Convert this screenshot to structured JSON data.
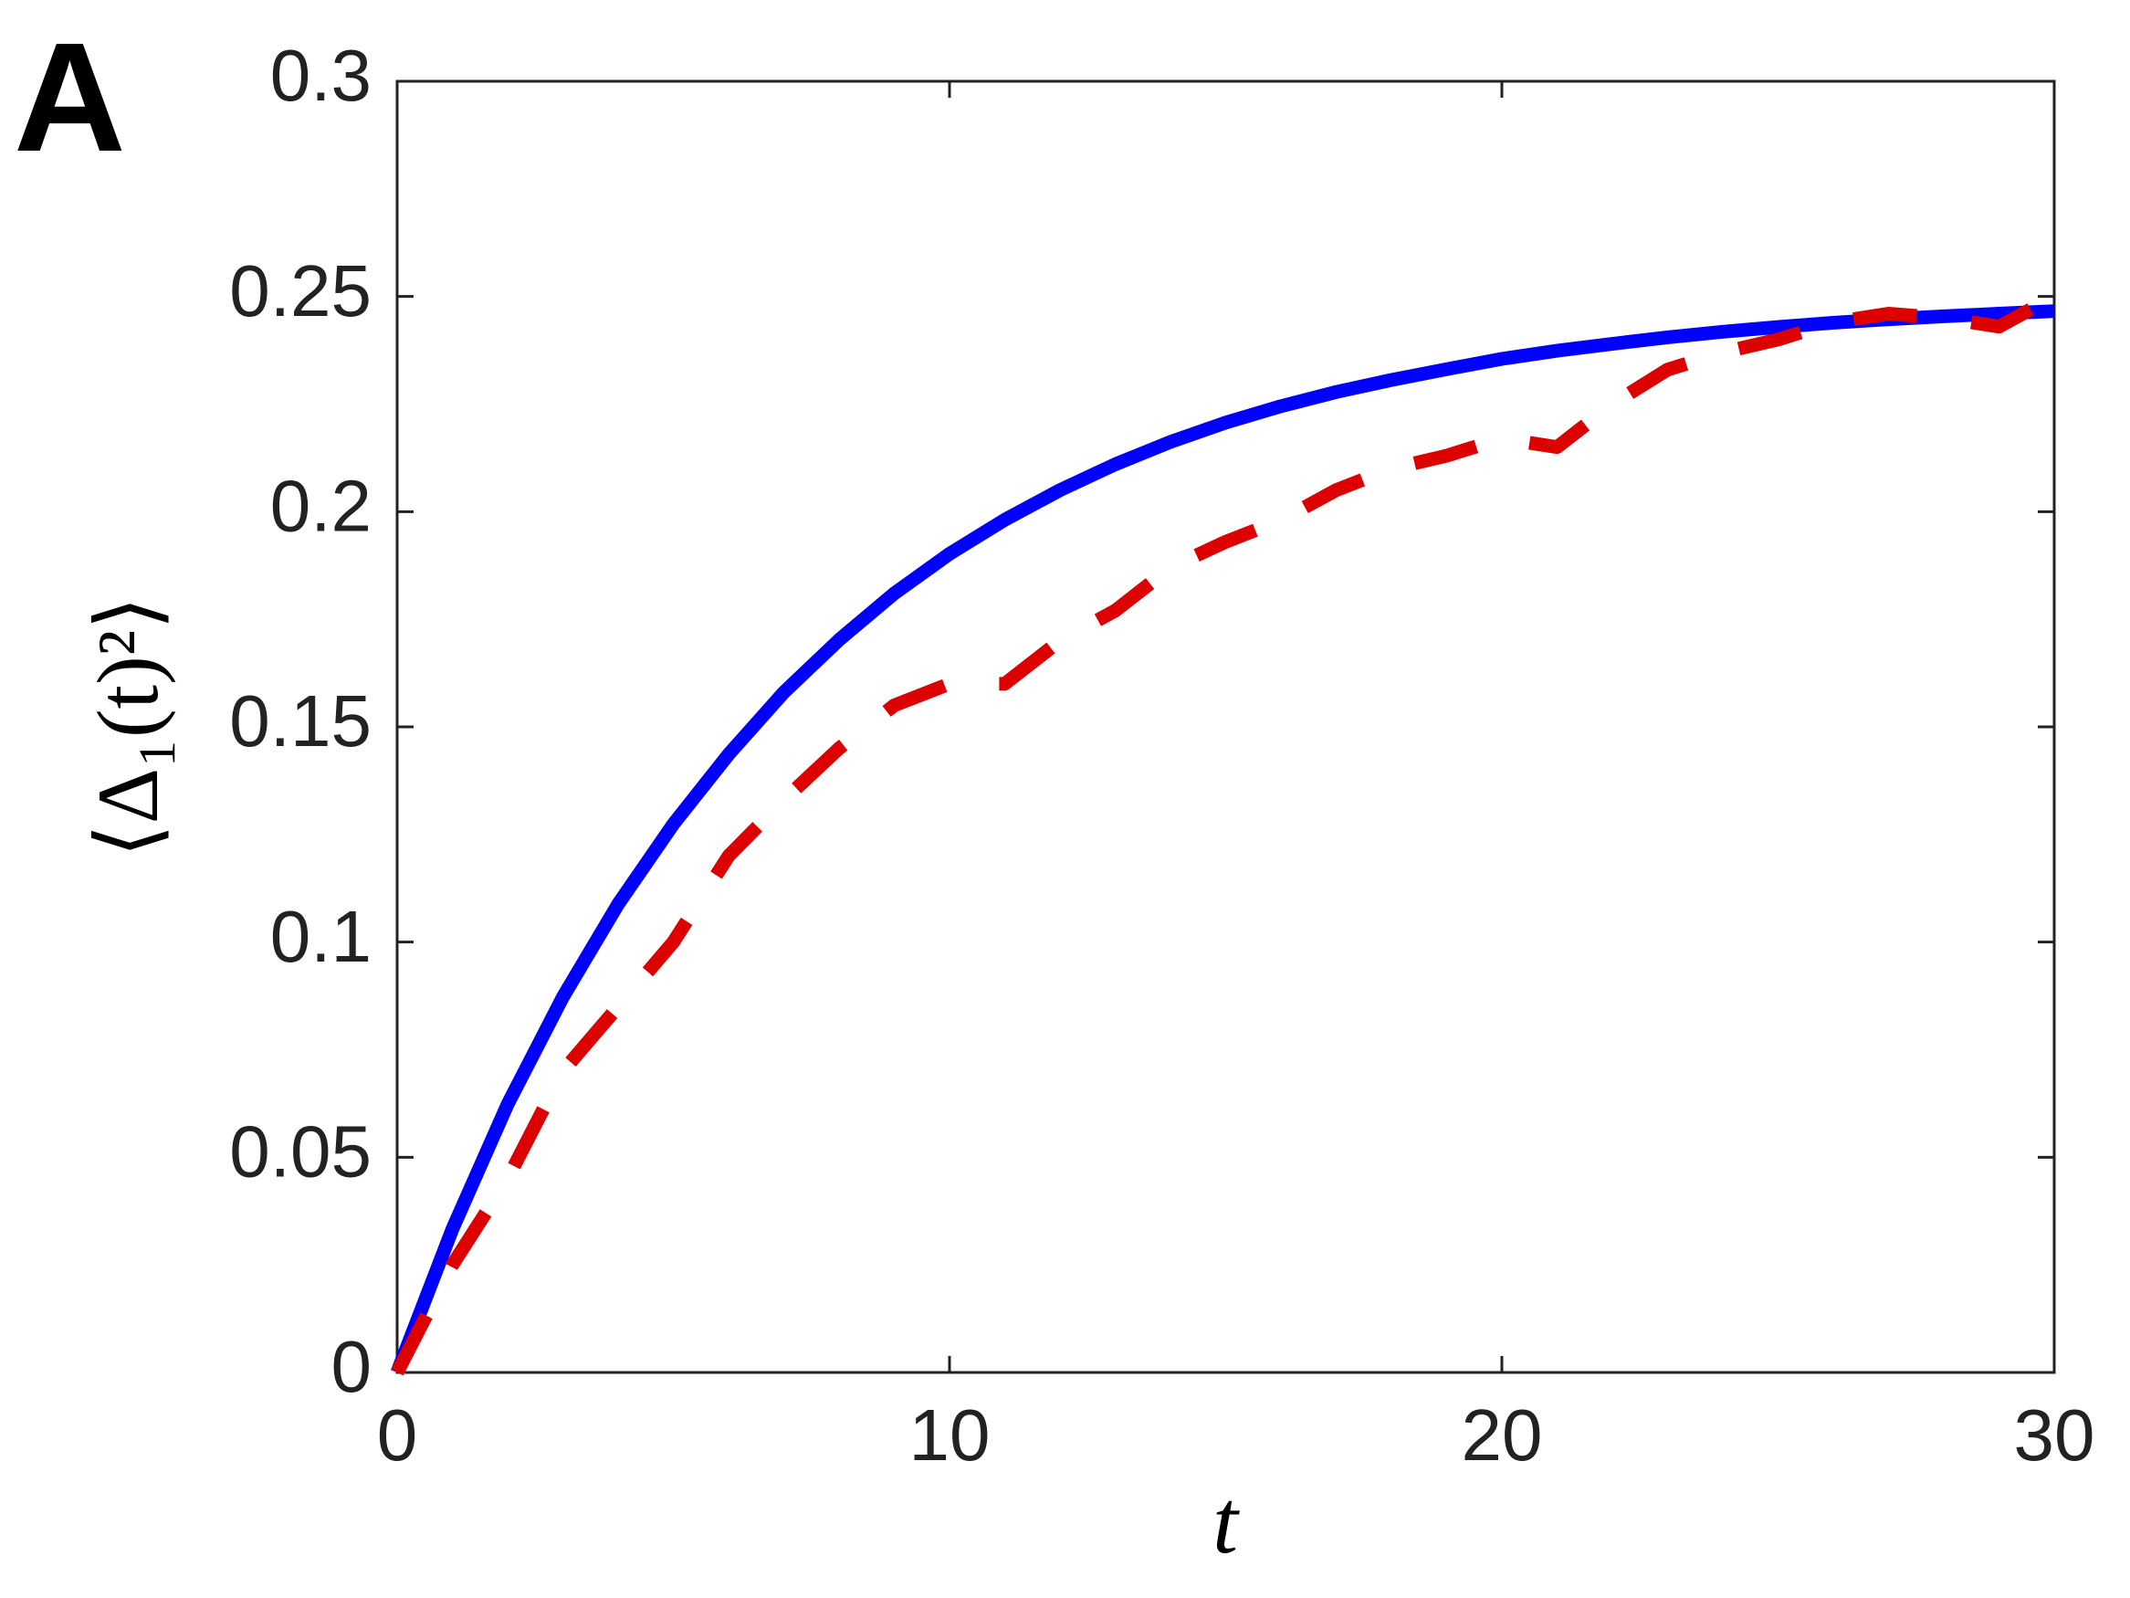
{
  "chart_data": {
    "type": "line",
    "panel_label": "A",
    "xlabel": "t",
    "ylabel": "⟨Δ₁(t)²⟩",
    "x": [
      0,
      1,
      2,
      3,
      4,
      5,
      6,
      7,
      8,
      9,
      10,
      11,
      12,
      13,
      14,
      15,
      16,
      17,
      18,
      19,
      20,
      21,
      22,
      23,
      24,
      25,
      26,
      27,
      28,
      29,
      30
    ],
    "series": [
      {
        "color": "#0000ff",
        "dashed": false,
        "values": [
          0,
          0.0333,
          0.0623,
          0.0872,
          0.1088,
          0.1274,
          0.1436,
          0.158,
          0.1702,
          0.181,
          0.1902,
          0.1981,
          0.205,
          0.211,
          0.2162,
          0.2207,
          0.2245,
          0.2278,
          0.2306,
          0.2331,
          0.2355,
          0.2374,
          0.239,
          0.2405,
          0.2418,
          0.2429,
          0.2439,
          0.2447,
          0.2454,
          0.246,
          0.2466
        ]
      },
      {
        "color": "#dd0000",
        "dashed": true,
        "values": [
          0,
          0.025,
          0.045,
          0.07,
          0.085,
          0.1,
          0.12,
          0.133,
          0.145,
          0.155,
          0.16,
          0.16,
          0.17,
          0.177,
          0.187,
          0.193,
          0.198,
          0.205,
          0.21,
          0.213,
          0.217,
          0.215,
          0.225,
          0.233,
          0.237,
          0.24,
          0.244,
          0.246,
          0.245,
          0.243,
          0.25
        ]
      }
    ],
    "xlim": [
      0,
      30
    ],
    "xticks": [
      0,
      10,
      20,
      30
    ],
    "ylim": [
      0,
      0.3
    ],
    "yticks": [
      0,
      0.05,
      0.1,
      0.15,
      0.2,
      0.25,
      0.3
    ],
    "grid": false
  }
}
